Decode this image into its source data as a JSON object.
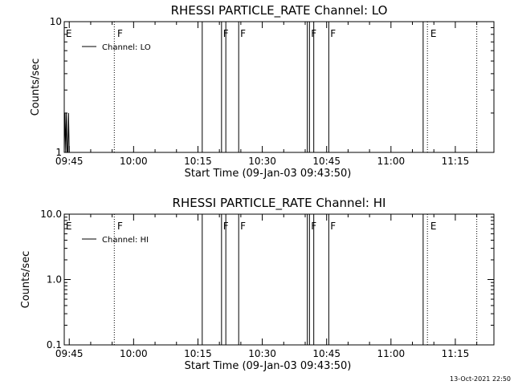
{
  "footer_timestamp": "13-Oct-2021 22:50",
  "chart_data": [
    {
      "type": "line",
      "title": "RHESSI PARTICLE_RATE Channel: LO",
      "xlabel": "Start Time (09-Jan-03 09:43:50)",
      "ylabel": "Counts/sec",
      "yscale": "log",
      "ylim": [
        1,
        10
      ],
      "yticks": [
        {
          "v": 1,
          "label": "1"
        },
        {
          "v": 10,
          "label": "10"
        }
      ],
      "xlim": [
        "09:43:50",
        "11:24:00"
      ],
      "xticks": [
        "09:45",
        "10:00",
        "10:15",
        "10:30",
        "10:45",
        "11:00",
        "11:15"
      ],
      "legend": {
        "label": "Channel: LO",
        "placement": "top-left"
      },
      "series": [
        {
          "name": "Channel: LO",
          "points": [
            [
              "09:43:50",
              1.0
            ],
            [
              "09:44:00",
              2.0
            ],
            [
              "09:44:10",
              1.0
            ],
            [
              "09:44:20",
              2.0
            ],
            [
              "09:44:30",
              1.0
            ],
            [
              "09:44:40",
              1.0
            ],
            [
              "09:44:50",
              2.0
            ],
            [
              "09:45:00",
              1.0
            ]
          ]
        }
      ],
      "flag_lines": [
        {
          "time": "09:55:30",
          "style": "dotted"
        },
        {
          "time": "10:16:00",
          "style": "solid"
        },
        {
          "time": "10:20:30",
          "style": "solid"
        },
        {
          "time": "10:21:30",
          "style": "solid"
        },
        {
          "time": "10:24:30",
          "style": "solid"
        },
        {
          "time": "10:40:30",
          "style": "solid"
        },
        {
          "time": "10:41:00",
          "style": "solid"
        },
        {
          "time": "10:42:00",
          "style": "solid"
        },
        {
          "time": "10:45:30",
          "style": "solid"
        },
        {
          "time": "11:07:30",
          "style": "solid"
        },
        {
          "time": "11:08:30",
          "style": "dotted"
        },
        {
          "time": "11:20:00",
          "style": "dotted"
        }
      ],
      "flag_labels": [
        {
          "time": "09:44:00",
          "label": "E"
        },
        {
          "time": "09:56:00",
          "label": "F"
        },
        {
          "time": "10:20:40",
          "label": "F"
        },
        {
          "time": "10:24:40",
          "label": "F"
        },
        {
          "time": "10:41:10",
          "label": "F"
        },
        {
          "time": "10:45:40",
          "label": "F"
        },
        {
          "time": "11:09:00",
          "label": "E"
        }
      ]
    },
    {
      "type": "line",
      "title": "RHESSI PARTICLE_RATE Channel: HI",
      "xlabel": "Start Time (09-Jan-03 09:43:50)",
      "ylabel": "Counts/sec",
      "yscale": "log",
      "ylim": [
        0.1,
        10
      ],
      "yticks": [
        {
          "v": 0.1,
          "label": "0.1"
        },
        {
          "v": 1,
          "label": "1.0"
        },
        {
          "v": 10,
          "label": "10.0"
        }
      ],
      "xlim": [
        "09:43:50",
        "11:24:00"
      ],
      "xticks": [
        "09:45",
        "10:00",
        "10:15",
        "10:30",
        "10:45",
        "11:00",
        "11:15"
      ],
      "legend": {
        "label": "Channel: HI",
        "placement": "top-left"
      },
      "series": [
        {
          "name": "Channel: HI",
          "points": []
        }
      ],
      "flag_lines": [
        {
          "time": "09:55:30",
          "style": "dotted"
        },
        {
          "time": "10:16:00",
          "style": "solid"
        },
        {
          "time": "10:20:30",
          "style": "solid"
        },
        {
          "time": "10:21:30",
          "style": "solid"
        },
        {
          "time": "10:24:30",
          "style": "solid"
        },
        {
          "time": "10:40:30",
          "style": "solid"
        },
        {
          "time": "10:41:00",
          "style": "solid"
        },
        {
          "time": "10:42:00",
          "style": "solid"
        },
        {
          "time": "10:45:30",
          "style": "solid"
        },
        {
          "time": "11:07:30",
          "style": "solid"
        },
        {
          "time": "11:08:30",
          "style": "dotted"
        },
        {
          "time": "11:20:00",
          "style": "dotted"
        }
      ],
      "flag_labels": [
        {
          "time": "09:44:00",
          "label": "E"
        },
        {
          "time": "09:56:00",
          "label": "F"
        },
        {
          "time": "10:20:40",
          "label": "F"
        },
        {
          "time": "10:24:40",
          "label": "F"
        },
        {
          "time": "10:41:10",
          "label": "F"
        },
        {
          "time": "10:45:40",
          "label": "F"
        },
        {
          "time": "11:09:00",
          "label": "E"
        }
      ]
    }
  ]
}
